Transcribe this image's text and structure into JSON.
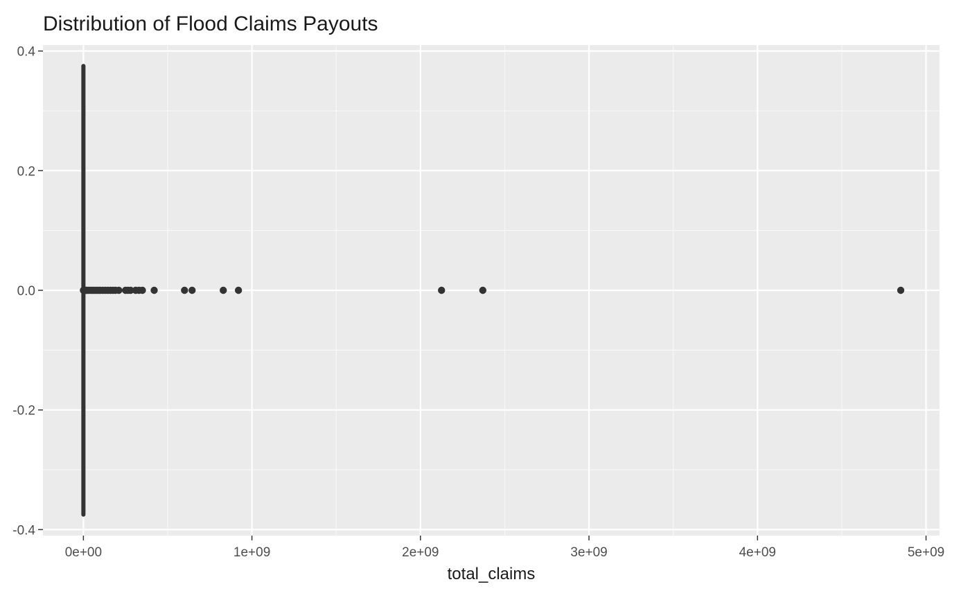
{
  "chart_data": {
    "type": "scatter",
    "title": "Distribution of Flood Claims Payouts",
    "xlabel": "total_claims",
    "ylabel": "",
    "xlim": [
      -240000000,
      5080000000
    ],
    "ylim": [
      -0.41,
      0.41
    ],
    "x_ticks": [
      0,
      1000000000,
      2000000000,
      3000000000,
      4000000000,
      5000000000
    ],
    "x_tick_labels": [
      "0e+00",
      "1e+09",
      "2e+09",
      "3e+09",
      "4e+09",
      "5e+09"
    ],
    "y_ticks": [
      -0.4,
      -0.2,
      0.0,
      0.2,
      0.4
    ],
    "y_tick_labels": [
      "-0.4",
      "-0.2",
      "0.0",
      "0.2",
      "0.4"
    ],
    "grid": true,
    "legend": "none",
    "point_color": "#333333",
    "panel_background": "#ebebeb",
    "jitter_column": {
      "x": 0,
      "y_range": [
        -0.375,
        0.375
      ]
    },
    "points": [
      {
        "x": 0,
        "y": 0
      },
      {
        "x": 5000000,
        "y": 0
      },
      {
        "x": 10000000,
        "y": 0
      },
      {
        "x": 15000000,
        "y": 0
      },
      {
        "x": 20000000,
        "y": 0
      },
      {
        "x": 30000000,
        "y": 0
      },
      {
        "x": 40000000,
        "y": 0
      },
      {
        "x": 50000000,
        "y": 0
      },
      {
        "x": 60000000,
        "y": 0
      },
      {
        "x": 70000000,
        "y": 0
      },
      {
        "x": 80000000,
        "y": 0
      },
      {
        "x": 90000000,
        "y": 0
      },
      {
        "x": 100000000,
        "y": 0
      },
      {
        "x": 115000000,
        "y": 0
      },
      {
        "x": 130000000,
        "y": 0
      },
      {
        "x": 145000000,
        "y": 0
      },
      {
        "x": 160000000,
        "y": 0
      },
      {
        "x": 175000000,
        "y": 0
      },
      {
        "x": 190000000,
        "y": 0
      },
      {
        "x": 210000000,
        "y": 0
      },
      {
        "x": 250000000,
        "y": 0
      },
      {
        "x": 265000000,
        "y": 0
      },
      {
        "x": 280000000,
        "y": 0
      },
      {
        "x": 310000000,
        "y": 0
      },
      {
        "x": 330000000,
        "y": 0
      },
      {
        "x": 350000000,
        "y": 0
      },
      {
        "x": 420000000,
        "y": 0
      },
      {
        "x": 600000000,
        "y": 0
      },
      {
        "x": 645000000,
        "y": 0
      },
      {
        "x": 830000000,
        "y": 0
      },
      {
        "x": 920000000,
        "y": 0
      },
      {
        "x": 2125000000,
        "y": 0
      },
      {
        "x": 2370000000,
        "y": 0
      },
      {
        "x": 4850000000,
        "y": 0
      }
    ]
  }
}
